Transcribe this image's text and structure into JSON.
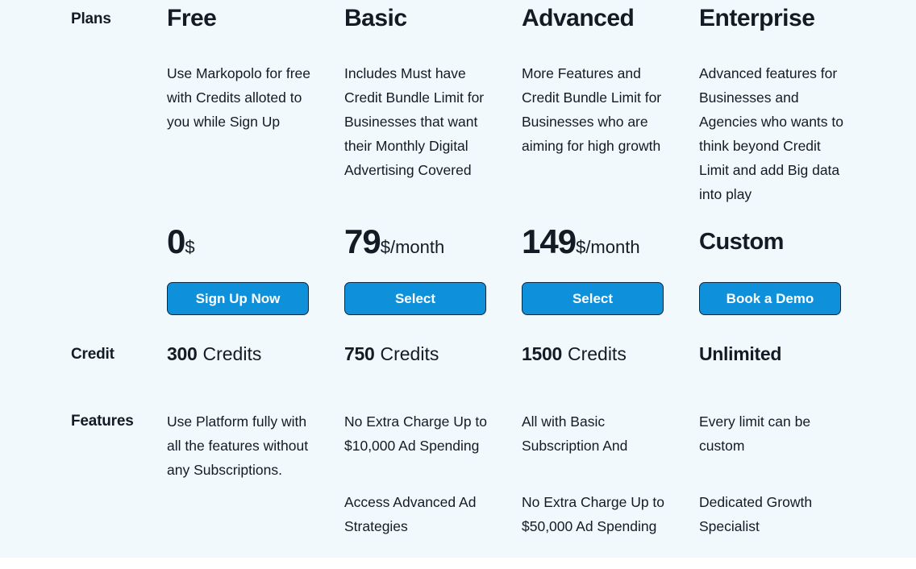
{
  "row_labels": {
    "plans": "Plans",
    "credit": "Credit",
    "features": "Features"
  },
  "plans": [
    {
      "name": "Free",
      "description": "Use Markopolo for free with Credits alloted to you while Sign Up",
      "price": {
        "amount": "0",
        "suffix": "$"
      },
      "button": "Sign Up Now",
      "credit": {
        "amount": "300",
        "unit": "Credits"
      },
      "features": [
        "Use Platform fully with all the features without any Subscriptions."
      ]
    },
    {
      "name": "Basic",
      "description": "Includes Must have Credit Bundle Limit for Businesses that want their Monthly Digital Advertising Covered",
      "price": {
        "amount": "79",
        "suffix": "$/month"
      },
      "button": "Select",
      "credit": {
        "amount": "750",
        "unit": "Credits"
      },
      "features": [
        "No Extra Charge Up to $10,000 Ad Spending",
        "Access Advanced Ad Strategies"
      ]
    },
    {
      "name": "Advanced",
      "description": "More Features and Credit Bundle Limit for Businesses who are aiming for high growth",
      "price": {
        "amount": "149",
        "suffix": "$/month"
      },
      "button": "Select",
      "credit": {
        "amount": "1500",
        "unit": "Credits"
      },
      "features": [
        "All with Basic Subscription And",
        "No Extra Charge Up to $50,000 Ad Spending"
      ]
    },
    {
      "name": "Enterprise",
      "description": "Advanced features for Businesses and Agencies who wants to think beyond Credit Limit and add Big data into play",
      "price": {
        "amount": "Custom",
        "suffix": ""
      },
      "button": "Book a Demo",
      "credit": {
        "amount": "Unlimited",
        "unit": ""
      },
      "features": [
        "Every limit can be custom",
        "Dedicated Growth Specialist"
      ]
    }
  ],
  "colors": {
    "background": "#f1f9fc",
    "accent": "#0f90da",
    "button_border": "#0d2840",
    "text": "#131c24",
    "button_text": "#ffffff"
  }
}
